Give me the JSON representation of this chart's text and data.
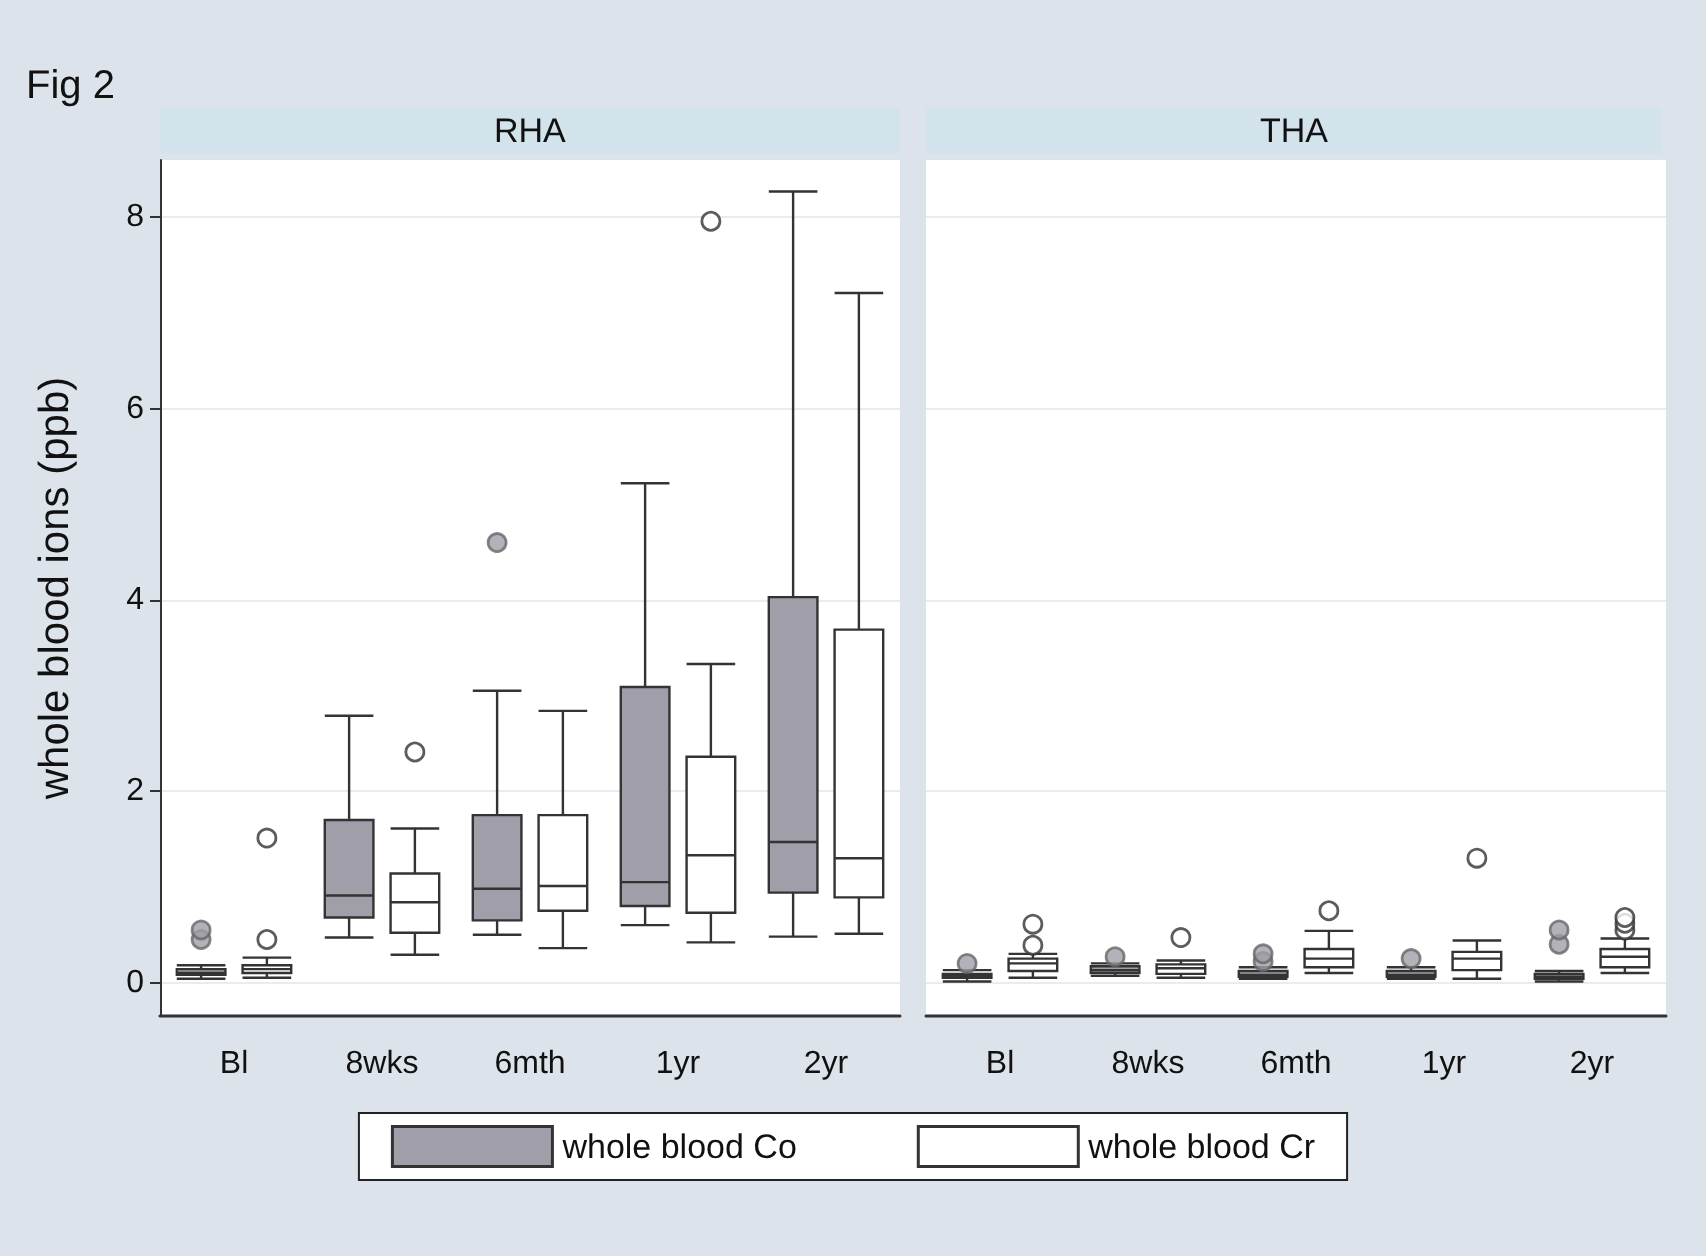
{
  "chart_data": [
    {
      "type": "box",
      "title": "RHA",
      "annotations": [
        "Fig 2"
      ],
      "ylabel": "whole blood ions (ppb)",
      "categories": [
        "Bl",
        "8wks",
        "6mth",
        "1yr",
        "2yr"
      ],
      "ylim": [
        -0.35,
        8.6
      ],
      "yticks": [
        0,
        2,
        4,
        6,
        8
      ],
      "grid": "y",
      "legend": "bottom",
      "series": [
        {
          "name": "whole blood Co",
          "color": "#a09ea8",
          "boxes": [
            {
              "low": 0.04,
              "q1": 0.08,
              "median": 0.1,
              "q3": 0.14,
              "high": 0.18,
              "outliers": [
                0.45,
                0.55
              ]
            },
            {
              "low": 0.47,
              "q1": 0.68,
              "median": 0.91,
              "q3": 1.7,
              "high": 2.79
            },
            {
              "low": 0.5,
              "q1": 0.65,
              "median": 0.98,
              "q3": 1.75,
              "high": 3.05,
              "outliers": [
                4.6
              ]
            },
            {
              "low": 0.6,
              "q1": 0.8,
              "median": 1.05,
              "q3": 3.09,
              "high": 5.22
            },
            {
              "low": 0.48,
              "q1": 0.94,
              "median": 1.47,
              "q3": 4.03,
              "high": 8.27
            }
          ]
        },
        {
          "name": "whole blood Cr",
          "color": "#ffffff",
          "boxes": [
            {
              "low": 0.05,
              "q1": 0.1,
              "median": 0.14,
              "q3": 0.18,
              "high": 0.26,
              "outliers": [
                0.45,
                1.51
              ]
            },
            {
              "low": 0.29,
              "q1": 0.52,
              "median": 0.84,
              "q3": 1.14,
              "high": 1.61,
              "outliers": [
                2.41
              ]
            },
            {
              "low": 0.36,
              "q1": 0.75,
              "median": 1.01,
              "q3": 1.75,
              "high": 2.84
            },
            {
              "low": 0.42,
              "q1": 0.73,
              "median": 1.33,
              "q3": 2.36,
              "high": 3.33,
              "outliers": [
                7.96
              ]
            },
            {
              "low": 0.51,
              "q1": 0.89,
              "median": 1.3,
              "q3": 3.69,
              "high": 7.21
            }
          ]
        }
      ]
    },
    {
      "type": "box",
      "title": "THA",
      "categories": [
        "Bl",
        "8wks",
        "6mth",
        "1yr",
        "2yr"
      ],
      "ylim": [
        -0.35,
        8.6
      ],
      "yticks": [
        0,
        2,
        4,
        6,
        8
      ],
      "grid": "y",
      "tick_labels": "x",
      "series": [
        {
          "color": "#a09ea8",
          "boxes": [
            {
              "low": 0.01,
              "q1": 0.05,
              "median": 0.07,
              "q3": 0.09,
              "high": 0.13,
              "outliers": [
                0.2
              ]
            },
            {
              "low": 0.07,
              "q1": 0.1,
              "median": 0.13,
              "q3": 0.17,
              "high": 0.2,
              "outliers": [
                0.27
              ]
            },
            {
              "low": 0.04,
              "q1": 0.06,
              "median": 0.08,
              "q3": 0.12,
              "high": 0.16,
              "outliers": [
                0.22,
                0.3
              ]
            },
            {
              "low": 0.04,
              "q1": 0.06,
              "median": 0.08,
              "q3": 0.12,
              "high": 0.16,
              "outliers": [
                0.25
              ]
            },
            {
              "low": 0.01,
              "q1": 0.04,
              "median": 0.06,
              "q3": 0.09,
              "high": 0.12,
              "outliers": [
                0.4,
                0.55
              ]
            }
          ]
        },
        {
          "color": "#ffffff",
          "boxes": [
            {
              "low": 0.05,
              "q1": 0.12,
              "median": 0.2,
              "q3": 0.25,
              "high": 0.3,
              "outliers": [
                0.39,
                0.61
              ]
            },
            {
              "low": 0.05,
              "q1": 0.09,
              "median": 0.15,
              "q3": 0.19,
              "high": 0.23,
              "outliers": [
                0.47
              ]
            },
            {
              "low": 0.1,
              "q1": 0.16,
              "median": 0.25,
              "q3": 0.35,
              "high": 0.54,
              "outliers": [
                0.75
              ]
            },
            {
              "low": 0.04,
              "q1": 0.13,
              "median": 0.25,
              "q3": 0.32,
              "high": 0.44,
              "outliers": [
                1.3
              ]
            },
            {
              "low": 0.1,
              "q1": 0.16,
              "median": 0.27,
              "q3": 0.35,
              "high": 0.46,
              "outliers": [
                0.55,
                0.62,
                0.68
              ]
            }
          ]
        }
      ]
    }
  ]
}
